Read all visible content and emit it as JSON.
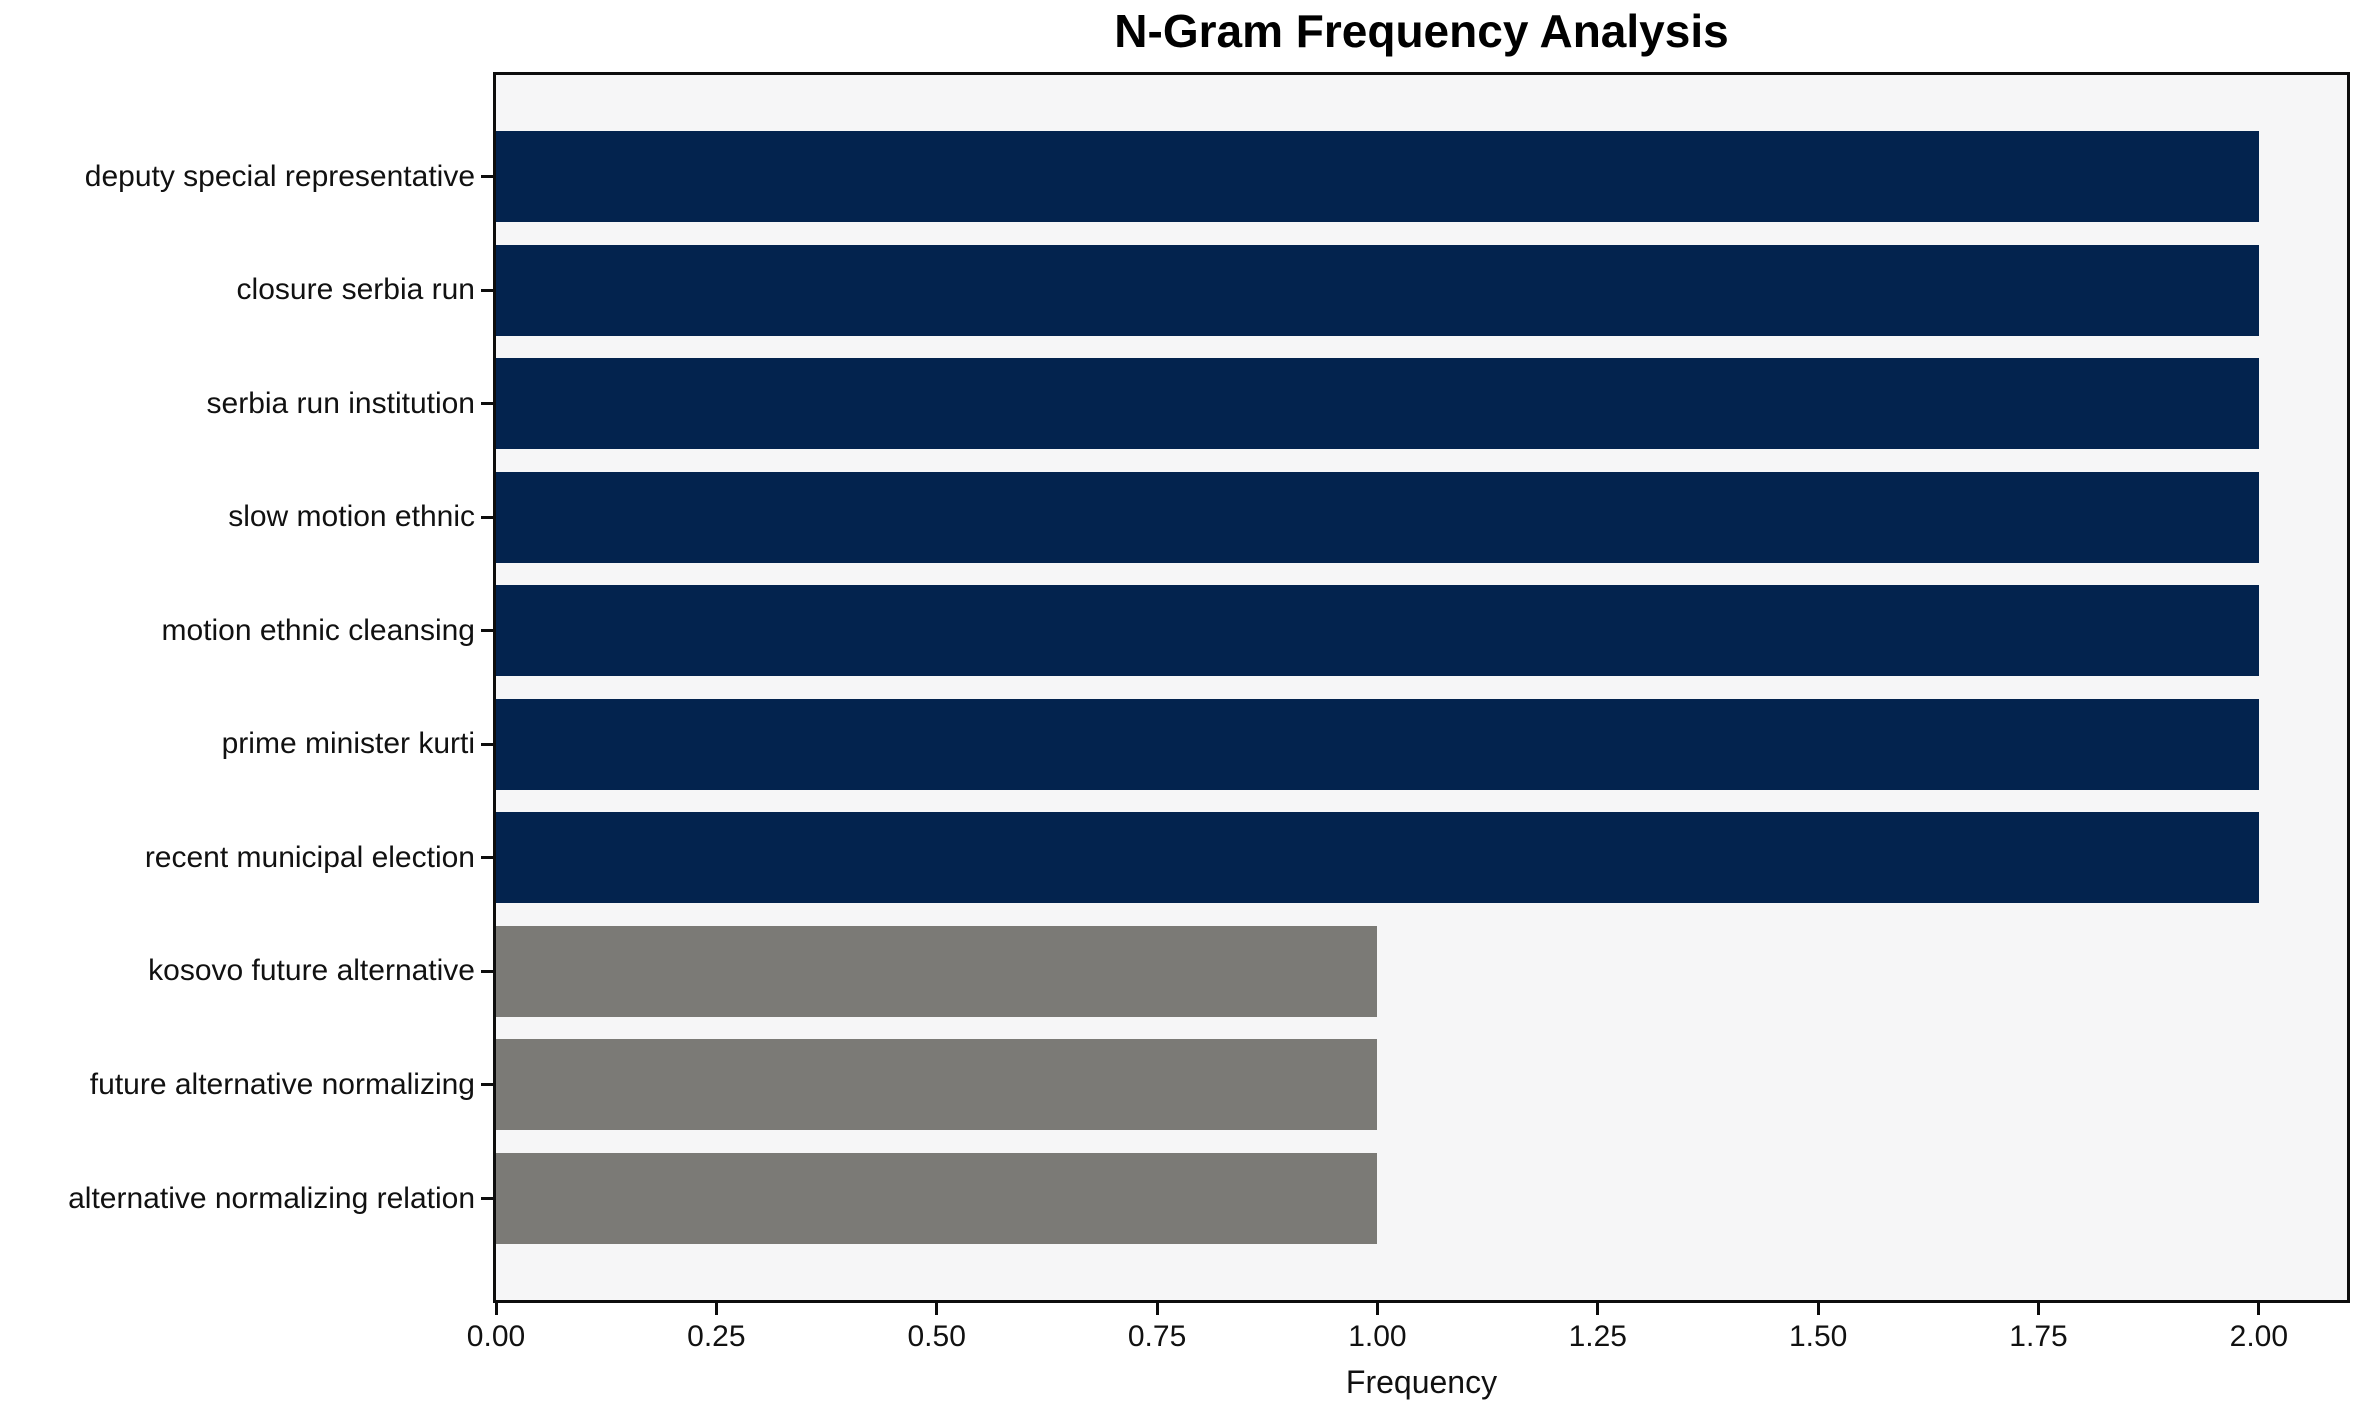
{
  "chart_data": {
    "type": "bar",
    "orientation": "horizontal",
    "title": "N-Gram Frequency Analysis",
    "xlabel": "Frequency",
    "ylabel": "",
    "categories": [
      "deputy special representative",
      "closure serbia run",
      "serbia run institution",
      "slow motion ethnic",
      "motion ethnic cleansing",
      "prime minister kurti",
      "recent municipal election",
      "kosovo future alternative",
      "future alternative normalizing",
      "alternative normalizing relation"
    ],
    "values": [
      2,
      2,
      2,
      2,
      2,
      2,
      2,
      1,
      1,
      1
    ],
    "bar_colors": [
      "#03234e",
      "#03234e",
      "#03234e",
      "#03234e",
      "#03234e",
      "#03234e",
      "#03234e",
      "#7b7a76",
      "#7b7a76",
      "#7b7a76"
    ],
    "xlim": [
      0,
      2.1
    ],
    "xticks": [
      "0.00",
      "0.25",
      "0.50",
      "0.75",
      "1.00",
      "1.25",
      "1.50",
      "1.75",
      "2.00"
    ],
    "xtick_values": [
      0,
      0.25,
      0.5,
      0.75,
      1.0,
      1.25,
      1.5,
      1.75,
      2.0
    ],
    "grid": false,
    "legend": false,
    "plot_background": "#f6f6f7",
    "figure_background": "#ffffff",
    "frame_color": "#0d0d0d",
    "text_color": "#111111"
  }
}
